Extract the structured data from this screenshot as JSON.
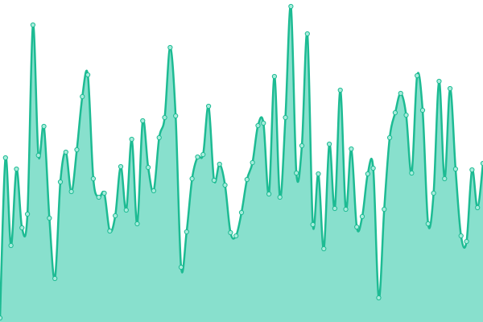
{
  "chart_data": {
    "type": "area",
    "color": "#1dbb93",
    "fill": "#88e0cd",
    "ylim": [
      0,
      400
    ],
    "values": [
      5,
      204,
      95,
      190,
      117,
      134,
      369,
      207,
      243,
      129,
      54,
      174,
      211,
      162,
      214,
      280,
      307,
      178,
      155,
      160,
      113,
      132,
      193,
      139,
      227,
      122,
      250,
      192,
      163,
      229,
      254,
      341,
      256,
      68,
      112,
      178,
      205,
      208,
      268,
      176,
      196,
      170,
      111,
      107,
      136,
      177,
      198,
      244,
      247,
      159,
      305,
      155,
      254,
      392,
      185,
      219,
      358,
      121,
      184,
      91,
      221,
      141,
      288,
      140,
      215,
      118,
      131,
      184,
      191,
      30,
      140,
      229,
      260,
      284,
      257,
      185,
      306,
      263,
      122,
      160,
      299,
      178,
      290,
      190,
      107,
      100,
      189,
      142,
      197
    ]
  }
}
